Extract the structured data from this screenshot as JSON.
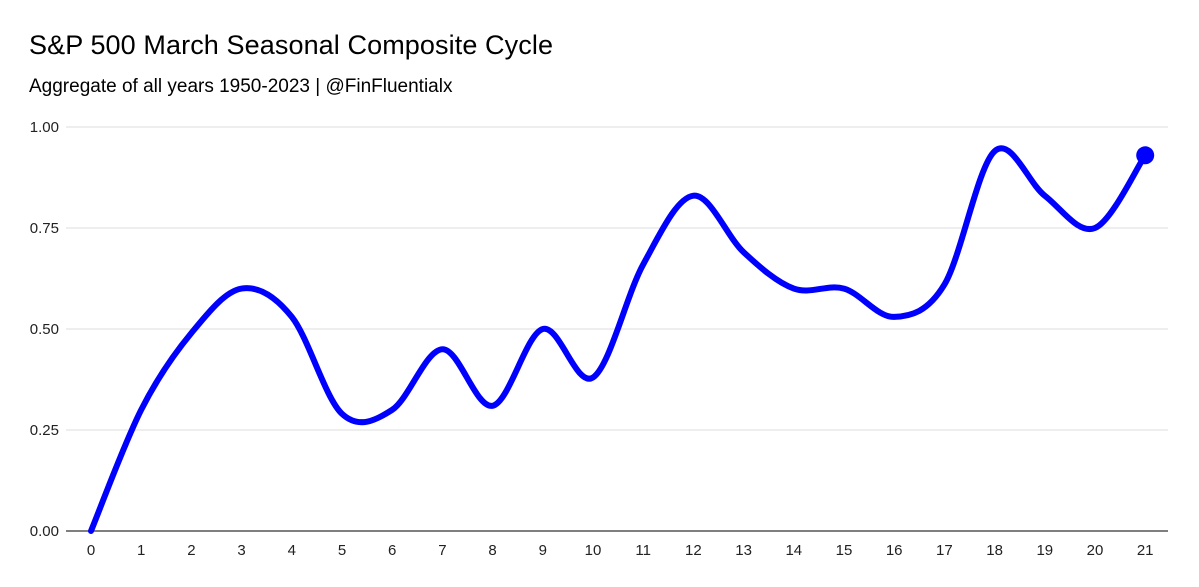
{
  "header": {
    "title": "S&P 500 March Seasonal Composite Cycle",
    "subtitle": "Aggregate of all years 1950-2023 | @FinFluentialx"
  },
  "chart_data": {
    "type": "line",
    "title": "S&P 500 March Seasonal Composite Cycle",
    "subtitle": "Aggregate of all years 1950-2023 | @FinFluentialx",
    "xlabel": "",
    "ylabel": "",
    "x": [
      0,
      1,
      2,
      3,
      4,
      5,
      6,
      7,
      8,
      9,
      10,
      11,
      12,
      13,
      14,
      15,
      16,
      17,
      18,
      19,
      20,
      21
    ],
    "series": [
      {
        "values": [
          0.0,
          0.3,
          0.49,
          0.6,
          0.53,
          0.29,
          0.3,
          0.45,
          0.31,
          0.5,
          0.38,
          0.66,
          0.83,
          0.69,
          0.6,
          0.6,
          0.53,
          0.61,
          0.94,
          0.83,
          0.75,
          0.93
        ],
        "color": "#0000ff"
      }
    ],
    "ylim": [
      0,
      1
    ],
    "yticks": [
      "0.00",
      "0.25",
      "0.50",
      "0.75",
      "1.00"
    ],
    "xticks": [
      "0",
      "1",
      "2",
      "3",
      "4",
      "5",
      "6",
      "7",
      "8",
      "9",
      "10",
      "11",
      "12",
      "13",
      "14",
      "15",
      "16",
      "17",
      "18",
      "19",
      "20",
      "21"
    ],
    "grid": true,
    "legend": "none",
    "end_marker": true
  },
  "colors": {
    "line": "#0000ff",
    "grid": "#dddddd",
    "axis": "#333333"
  }
}
